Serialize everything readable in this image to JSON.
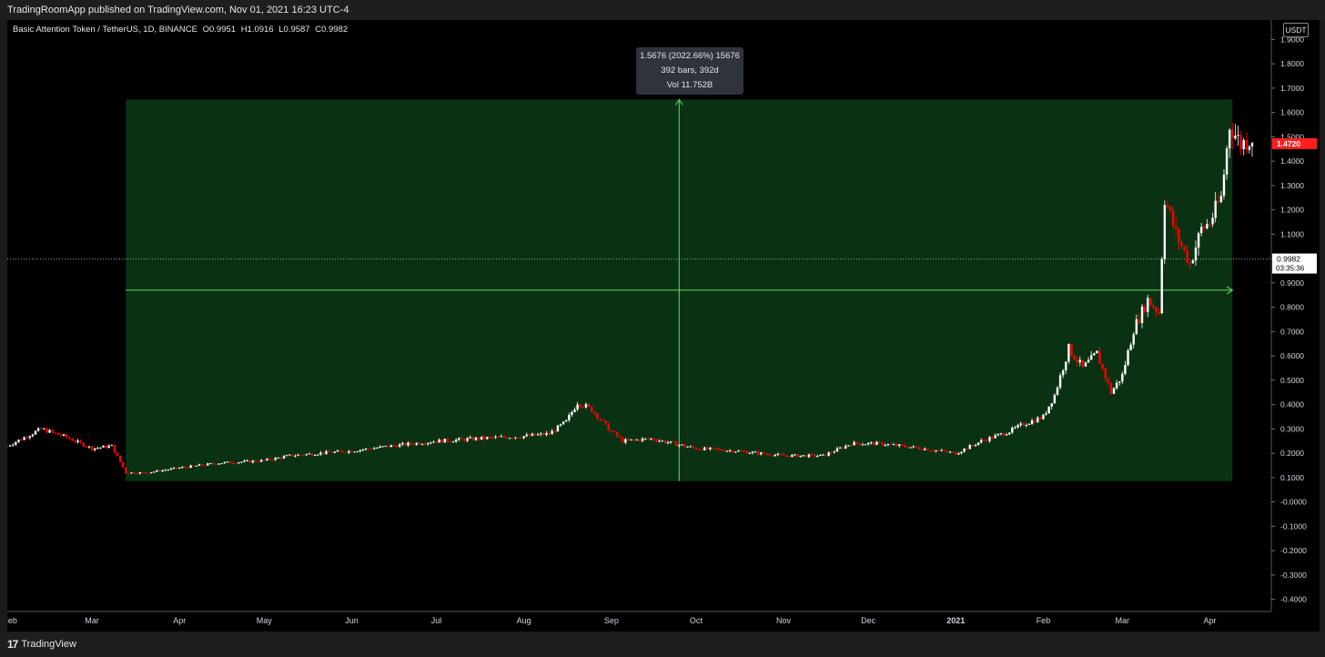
{
  "header": {
    "published": "TradingRoomApp published on TradingView.com, Nov 01, 2021 16:23 UTC-4"
  },
  "symbol": {
    "name": "Basic Attention Token / TetherUS, 1D, BINANCE",
    "open": "O0.9951",
    "high": "H1.0916",
    "low": "L0.9587",
    "close": "C0.9982"
  },
  "measure": {
    "line1": "1.5676 (2022.66%) 15676",
    "line2": "392 bars, 392d",
    "line3": "Vol 11.752B"
  },
  "price_axis": {
    "unit": "USDT",
    "last_price": "1.4720",
    "crosshair_price": "0.9982",
    "countdown": "03:35:36"
  },
  "footer": {
    "brand": "TradingView",
    "logo_mark": "17"
  },
  "colors": {
    "up": "#ffffff",
    "down": "#ff0000",
    "range_fill": "#0a3212",
    "range_line": "#5ee05e",
    "last_price_bg": "#ff1f1f"
  },
  "chart_data": {
    "type": "candlestick",
    "title": "Basic Attention Token / TetherUS, 1D, BINANCE",
    "xlabel": "",
    "ylabel": "",
    "ylim": [
      -0.45,
      1.95
    ],
    "yticks": [
      "1.9000",
      "1.8000",
      "1.7000",
      "1.6000",
      "1.5000",
      "1.4000",
      "1.3000",
      "1.2000",
      "1.1000",
      "1.0000",
      "0.9000",
      "0.8000",
      "0.7000",
      "0.6000",
      "0.5000",
      "0.4000",
      "0.3000",
      "0.2000",
      "0.1000",
      "-0.0000",
      "-0.1000",
      "-0.2000",
      "-0.3000",
      "-0.4000"
    ],
    "xticks": [
      {
        "label": "Feb",
        "date": "2020-02-01"
      },
      {
        "label": "Mar",
        "date": "2020-03-01"
      },
      {
        "label": "Apr",
        "date": "2020-04-01"
      },
      {
        "label": "May",
        "date": "2020-05-01"
      },
      {
        "label": "Jun",
        "date": "2020-06-01"
      },
      {
        "label": "Jul",
        "date": "2020-07-01"
      },
      {
        "label": "Aug",
        "date": "2020-08-01"
      },
      {
        "label": "Sep",
        "date": "2020-09-01"
      },
      {
        "label": "Oct",
        "date": "2020-10-01"
      },
      {
        "label": "Nov",
        "date": "2020-11-01"
      },
      {
        "label": "Dec",
        "date": "2020-12-01"
      },
      {
        "label": "2021",
        "date": "2021-01-01"
      },
      {
        "label": "Feb",
        "date": "2021-02-01"
      },
      {
        "label": "Mar",
        "date": "2021-03-01"
      },
      {
        "label": "Apr",
        "date": "2021-04-01"
      }
    ],
    "x_start": "2020-01-31",
    "x_end": "2021-04-16",
    "price_path": [
      [
        "2020-01-31",
        0.23
      ],
      [
        "2020-02-12",
        0.3
      ],
      [
        "2020-02-20",
        0.27
      ],
      [
        "2020-03-01",
        0.22
      ],
      [
        "2020-03-08",
        0.23
      ],
      [
        "2020-03-13",
        0.12
      ],
      [
        "2020-03-20",
        0.12
      ],
      [
        "2020-04-01",
        0.14
      ],
      [
        "2020-04-15",
        0.16
      ],
      [
        "2020-05-01",
        0.17
      ],
      [
        "2020-05-10",
        0.19
      ],
      [
        "2020-05-20",
        0.2
      ],
      [
        "2020-06-01",
        0.21
      ],
      [
        "2020-06-15",
        0.23
      ],
      [
        "2020-07-01",
        0.25
      ],
      [
        "2020-07-15",
        0.26
      ],
      [
        "2020-08-01",
        0.27
      ],
      [
        "2020-08-10",
        0.28
      ],
      [
        "2020-08-16",
        0.33
      ],
      [
        "2020-08-20",
        0.41
      ],
      [
        "2020-08-25",
        0.38
      ],
      [
        "2020-08-31",
        0.3
      ],
      [
        "2020-09-05",
        0.25
      ],
      [
        "2020-09-15",
        0.26
      ],
      [
        "2020-10-01",
        0.22
      ],
      [
        "2020-10-15",
        0.21
      ],
      [
        "2020-11-01",
        0.19
      ],
      [
        "2020-11-15",
        0.19
      ],
      [
        "2020-11-25",
        0.24
      ],
      [
        "2020-12-05",
        0.24
      ],
      [
        "2020-12-20",
        0.22
      ],
      [
        "2021-01-01",
        0.2
      ],
      [
        "2021-01-10",
        0.25
      ],
      [
        "2021-01-20",
        0.29
      ],
      [
        "2021-01-25",
        0.32
      ],
      [
        "2021-02-01",
        0.35
      ],
      [
        "2021-02-05",
        0.44
      ],
      [
        "2021-02-10",
        0.63
      ],
      [
        "2021-02-15",
        0.55
      ],
      [
        "2021-02-20",
        0.61
      ],
      [
        "2021-02-25",
        0.45
      ],
      [
        "2021-03-01",
        0.52
      ],
      [
        "2021-03-05",
        0.71
      ],
      [
        "2021-03-10",
        0.83
      ],
      [
        "2021-03-14",
        0.78
      ],
      [
        "2021-03-16",
        1.25
      ],
      [
        "2021-03-20",
        1.1
      ],
      [
        "2021-03-25",
        0.98
      ],
      [
        "2021-03-29",
        1.12
      ],
      [
        "2021-04-01",
        1.15
      ],
      [
        "2021-04-05",
        1.25
      ],
      [
        "2021-04-08",
        1.55
      ],
      [
        "2021-04-12",
        1.47
      ],
      [
        "2021-04-16",
        1.5
      ]
    ],
    "annotations": {
      "date_range": {
        "start": "2020-03-13",
        "end": "2021-04-09",
        "low": 0.0858,
        "high": 1.6534
      },
      "midline_price": 0.87,
      "current_price_line": 0.9982,
      "last_price": 1.472
    }
  }
}
